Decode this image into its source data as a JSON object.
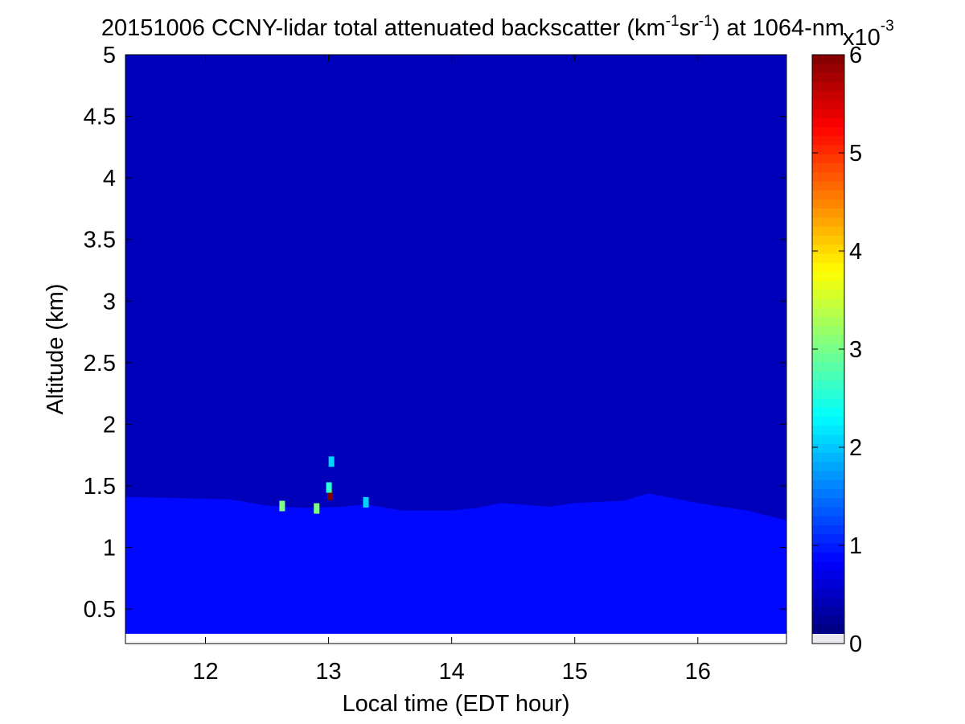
{
  "chart_data": {
    "type": "heatmap",
    "title_parts": {
      "p1": "20151006 CCNY-lidar total attenuated backscatter (km",
      "s1": "-1",
      "p2": "sr",
      "s2": "-1",
      "p3": ") at 1064-nm"
    },
    "xlabel": "Local time (EDT hour)",
    "ylabel": "Altitude (km)",
    "xlim": [
      11.35,
      16.72
    ],
    "ylim": [
      0.22,
      5
    ],
    "data_ylim": [
      0.3,
      5
    ],
    "xticks": [
      "12",
      "13",
      "14",
      "15",
      "16"
    ],
    "yticks": [
      "0.5",
      "1",
      "1.5",
      "2",
      "2.5",
      "3",
      "3.5",
      "4",
      "4.5",
      "5"
    ],
    "colorbar": {
      "range": [
        0,
        6
      ],
      "ticks": [
        "0",
        "1",
        "2",
        "3",
        "4",
        "5",
        "6"
      ],
      "multiplier": "x10",
      "multiplier_exp": "-3",
      "colormap": "jet"
    },
    "background_value": 0.35,
    "boundary_layer_top": [
      {
        "t": 11.35,
        "h": 1.41
      },
      {
        "t": 11.8,
        "h": 1.4
      },
      {
        "t": 12.2,
        "h": 1.39
      },
      {
        "t": 12.5,
        "h": 1.34
      },
      {
        "t": 12.8,
        "h": 1.32
      },
      {
        "t": 13.1,
        "h": 1.33
      },
      {
        "t": 13.3,
        "h": 1.35
      },
      {
        "t": 13.6,
        "h": 1.3
      },
      {
        "t": 14.0,
        "h": 1.3
      },
      {
        "t": 14.2,
        "h": 1.32
      },
      {
        "t": 14.4,
        "h": 1.36
      },
      {
        "t": 14.8,
        "h": 1.33
      },
      {
        "t": 15.0,
        "h": 1.36
      },
      {
        "t": 15.4,
        "h": 1.38
      },
      {
        "t": 15.6,
        "h": 1.44
      },
      {
        "t": 16.0,
        "h": 1.36
      },
      {
        "t": 16.4,
        "h": 1.3
      },
      {
        "t": 16.72,
        "h": 1.22
      }
    ],
    "boundary_layer_value": 0.8,
    "hotspots": [
      {
        "t": 13.01,
        "h": 1.43,
        "value": 6.0
      },
      {
        "t": 13.0,
        "h": 1.49,
        "value": 2.5
      },
      {
        "t": 13.3,
        "h": 1.37,
        "value": 2.0
      },
      {
        "t": 12.62,
        "h": 1.34,
        "value": 3.0
      },
      {
        "t": 12.9,
        "h": 1.32,
        "value": 3.0
      },
      {
        "t": 13.02,
        "h": 1.7,
        "value": 2.0
      }
    ]
  }
}
